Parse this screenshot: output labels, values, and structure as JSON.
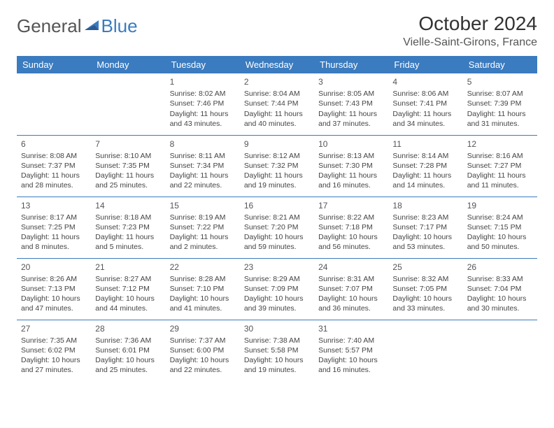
{
  "logo": {
    "general": "General",
    "blue": "Blue"
  },
  "title": "October 2024",
  "location": "Vielle-Saint-Girons, France",
  "weekdays": [
    "Sunday",
    "Monday",
    "Tuesday",
    "Wednesday",
    "Thursday",
    "Friday",
    "Saturday"
  ],
  "colors": {
    "header_bg": "#3b7bbf",
    "header_text": "#ffffff",
    "border": "#3b7bbf",
    "text": "#444444",
    "logo_blue": "#3b7bbf",
    "logo_gray": "#555555"
  },
  "layout": {
    "first_blank_cells": 2,
    "last_blank_cells": 2
  },
  "days": [
    {
      "n": "1",
      "sr": "8:02 AM",
      "ss": "7:46 PM",
      "dl": "11 hours and 43 minutes."
    },
    {
      "n": "2",
      "sr": "8:04 AM",
      "ss": "7:44 PM",
      "dl": "11 hours and 40 minutes."
    },
    {
      "n": "3",
      "sr": "8:05 AM",
      "ss": "7:43 PM",
      "dl": "11 hours and 37 minutes."
    },
    {
      "n": "4",
      "sr": "8:06 AM",
      "ss": "7:41 PM",
      "dl": "11 hours and 34 minutes."
    },
    {
      "n": "5",
      "sr": "8:07 AM",
      "ss": "7:39 PM",
      "dl": "11 hours and 31 minutes."
    },
    {
      "n": "6",
      "sr": "8:08 AM",
      "ss": "7:37 PM",
      "dl": "11 hours and 28 minutes."
    },
    {
      "n": "7",
      "sr": "8:10 AM",
      "ss": "7:35 PM",
      "dl": "11 hours and 25 minutes."
    },
    {
      "n": "8",
      "sr": "8:11 AM",
      "ss": "7:34 PM",
      "dl": "11 hours and 22 minutes."
    },
    {
      "n": "9",
      "sr": "8:12 AM",
      "ss": "7:32 PM",
      "dl": "11 hours and 19 minutes."
    },
    {
      "n": "10",
      "sr": "8:13 AM",
      "ss": "7:30 PM",
      "dl": "11 hours and 16 minutes."
    },
    {
      "n": "11",
      "sr": "8:14 AM",
      "ss": "7:28 PM",
      "dl": "11 hours and 14 minutes."
    },
    {
      "n": "12",
      "sr": "8:16 AM",
      "ss": "7:27 PM",
      "dl": "11 hours and 11 minutes."
    },
    {
      "n": "13",
      "sr": "8:17 AM",
      "ss": "7:25 PM",
      "dl": "11 hours and 8 minutes."
    },
    {
      "n": "14",
      "sr": "8:18 AM",
      "ss": "7:23 PM",
      "dl": "11 hours and 5 minutes."
    },
    {
      "n": "15",
      "sr": "8:19 AM",
      "ss": "7:22 PM",
      "dl": "11 hours and 2 minutes."
    },
    {
      "n": "16",
      "sr": "8:21 AM",
      "ss": "7:20 PM",
      "dl": "10 hours and 59 minutes."
    },
    {
      "n": "17",
      "sr": "8:22 AM",
      "ss": "7:18 PM",
      "dl": "10 hours and 56 minutes."
    },
    {
      "n": "18",
      "sr": "8:23 AM",
      "ss": "7:17 PM",
      "dl": "10 hours and 53 minutes."
    },
    {
      "n": "19",
      "sr": "8:24 AM",
      "ss": "7:15 PM",
      "dl": "10 hours and 50 minutes."
    },
    {
      "n": "20",
      "sr": "8:26 AM",
      "ss": "7:13 PM",
      "dl": "10 hours and 47 minutes."
    },
    {
      "n": "21",
      "sr": "8:27 AM",
      "ss": "7:12 PM",
      "dl": "10 hours and 44 minutes."
    },
    {
      "n": "22",
      "sr": "8:28 AM",
      "ss": "7:10 PM",
      "dl": "10 hours and 41 minutes."
    },
    {
      "n": "23",
      "sr": "8:29 AM",
      "ss": "7:09 PM",
      "dl": "10 hours and 39 minutes."
    },
    {
      "n": "24",
      "sr": "8:31 AM",
      "ss": "7:07 PM",
      "dl": "10 hours and 36 minutes."
    },
    {
      "n": "25",
      "sr": "8:32 AM",
      "ss": "7:05 PM",
      "dl": "10 hours and 33 minutes."
    },
    {
      "n": "26",
      "sr": "8:33 AM",
      "ss": "7:04 PM",
      "dl": "10 hours and 30 minutes."
    },
    {
      "n": "27",
      "sr": "7:35 AM",
      "ss": "6:02 PM",
      "dl": "10 hours and 27 minutes."
    },
    {
      "n": "28",
      "sr": "7:36 AM",
      "ss": "6:01 PM",
      "dl": "10 hours and 25 minutes."
    },
    {
      "n": "29",
      "sr": "7:37 AM",
      "ss": "6:00 PM",
      "dl": "10 hours and 22 minutes."
    },
    {
      "n": "30",
      "sr": "7:38 AM",
      "ss": "5:58 PM",
      "dl": "10 hours and 19 minutes."
    },
    {
      "n": "31",
      "sr": "7:40 AM",
      "ss": "5:57 PM",
      "dl": "10 hours and 16 minutes."
    }
  ],
  "labels": {
    "sunrise": "Sunrise:",
    "sunset": "Sunset:",
    "daylight": "Daylight:"
  }
}
